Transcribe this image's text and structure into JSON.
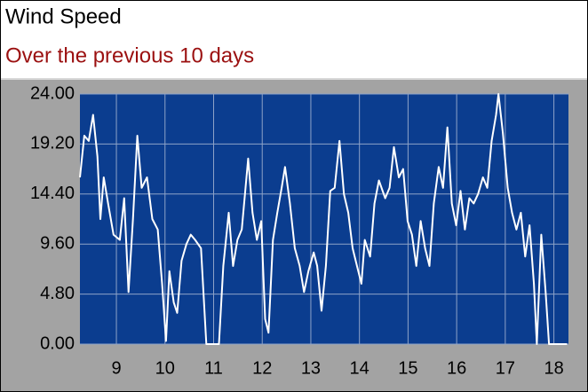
{
  "chart_data": {
    "type": "line",
    "title": "Wind Speed",
    "subtitle": "Over the previous 10 days",
    "x": [
      8.25,
      8.34,
      8.43,
      8.52,
      8.61,
      8.67,
      8.74,
      8.83,
      8.94,
      9.07,
      9.16,
      9.25,
      9.34,
      9.43,
      9.52,
      9.63,
      9.74,
      9.85,
      9.94,
      10.02,
      10.09,
      10.18,
      10.25,
      10.34,
      10.44,
      10.53,
      10.62,
      10.74,
      10.85,
      10.98,
      11.11,
      11.2,
      11.31,
      11.4,
      11.49,
      11.58,
      11.71,
      11.8,
      11.89,
      11.98,
      12.06,
      12.13,
      12.22,
      12.31,
      12.4,
      12.47,
      12.57,
      12.67,
      12.77,
      12.86,
      12.95,
      13.06,
      13.13,
      13.22,
      13.31,
      13.4,
      13.49,
      13.59,
      13.68,
      13.77,
      13.86,
      13.95,
      14.04,
      14.11,
      14.22,
      14.31,
      14.4,
      14.53,
      14.62,
      14.71,
      14.81,
      14.9,
      14.99,
      15.08,
      15.17,
      15.26,
      15.35,
      15.44,
      15.53,
      15.63,
      15.72,
      15.81,
      15.9,
      15.99,
      16.08,
      16.17,
      16.26,
      16.35,
      16.44,
      16.54,
      16.63,
      16.72,
      16.81,
      16.86,
      16.95,
      17.05,
      17.14,
      17.23,
      17.32,
      17.41,
      17.5,
      17.59,
      17.65,
      17.74,
      17.83,
      17.9,
      18.08,
      18.27
    ],
    "values": [
      16,
      20,
      19.5,
      22,
      18,
      12,
      16,
      13.5,
      10.5,
      10,
      14,
      5,
      12,
      20,
      15,
      16,
      12,
      11,
      5.8,
      0.3,
      7,
      4,
      3,
      8,
      9.6,
      10.5,
      10,
      9.2,
      0,
      0,
      0,
      7.5,
      12.6,
      7.5,
      10,
      11,
      17.8,
      12.6,
      10,
      11.8,
      2.4,
      1.1,
      10,
      12.6,
      15,
      17,
      13.5,
      9.2,
      7.5,
      5,
      7,
      8.8,
      7.5,
      3.2,
      7.5,
      14.7,
      15,
      19.5,
      14.4,
      12.6,
      9.2,
      7.5,
      5.8,
      10,
      8.4,
      13.5,
      15.7,
      14,
      15,
      18.9,
      16,
      16.8,
      11.8,
      10.5,
      7.5,
      11.8,
      9.2,
      7.5,
      13.5,
      17,
      15,
      20.8,
      13.5,
      11.4,
      14.7,
      11,
      14,
      13.5,
      14.4,
      16,
      15,
      19.5,
      22,
      24,
      20.3,
      15,
      12.6,
      11,
      12.6,
      8.4,
      11.4,
      5.8,
      0,
      10.5,
      5,
      0,
      0,
      0
    ],
    "color": "#ffffff",
    "plot_background": "#0b3d8f",
    "grid": true,
    "xlim": [
      8.25,
      18.3
    ],
    "xticks": [
      9,
      10,
      11,
      12,
      13,
      14,
      15,
      16,
      17,
      18
    ],
    "ylim": [
      0,
      24
    ],
    "yticks": [
      {
        "value": 0,
        "label": "0.00"
      },
      {
        "value": 4.8,
        "label": "4.80"
      },
      {
        "value": 9.6,
        "label": "9.60"
      },
      {
        "value": 14.4,
        "label": "14.40"
      },
      {
        "value": 19.2,
        "label": "19.20"
      },
      {
        "value": 24,
        "label": "24.00"
      }
    ]
  }
}
